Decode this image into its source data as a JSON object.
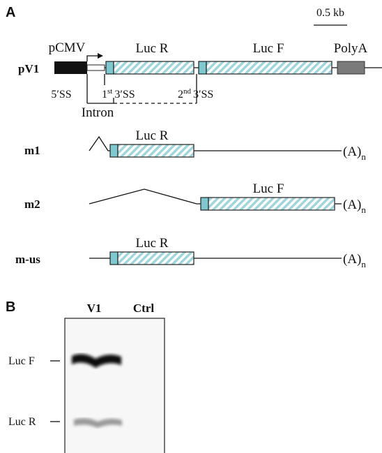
{
  "panel_a": {
    "label": "A",
    "scale": "0.5 kb",
    "construct": {
      "name": "pV1",
      "promoter": "pCMV",
      "gene_1": "Luc R",
      "gene_2": "Luc F",
      "polya": "PolyA",
      "splice_5": "5′SS",
      "splice_3_first": {
        "ordinal": "1",
        "suffix": "st",
        "label": "3′SS"
      },
      "splice_3_second": {
        "ordinal": "2",
        "suffix": "nd",
        "label": "3′SS"
      },
      "intron": "Intron"
    },
    "transcripts": [
      {
        "name": "m1",
        "gene": "Luc R",
        "tail": "(A)",
        "tail_sub": "n"
      },
      {
        "name": "m2",
        "gene": "Luc F",
        "tail": "(A)",
        "tail_sub": "n"
      },
      {
        "name": "m-us",
        "gene": "Luc R",
        "tail": "(A)",
        "tail_sub": "n"
      }
    ]
  },
  "panel_b": {
    "label": "B",
    "lanes": [
      "V1",
      "Ctrl"
    ],
    "bands": [
      "Luc F",
      "Luc R"
    ]
  }
}
